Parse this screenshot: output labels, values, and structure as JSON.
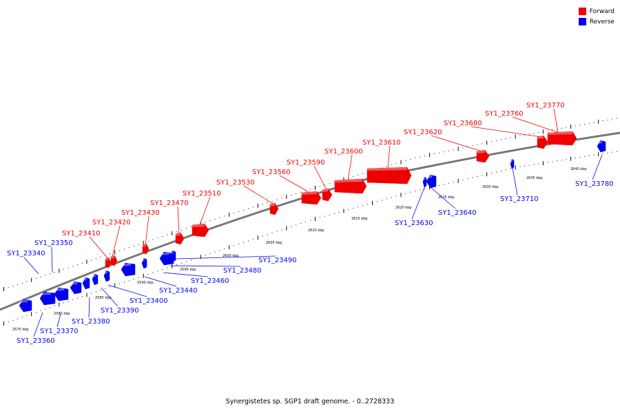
{
  "legend": {
    "forward_label": "Forward",
    "reverse_label": "Reverse",
    "forward_color": "#ee0000",
    "reverse_color": "#0000ee"
  },
  "caption": "Synergistetes sp. SGP1 draft genome. - 0..2728333",
  "axis_labels": [
    "2575 kbp",
    "2580 kbp",
    "2585 kbp",
    "2590 kbp",
    "2595 kbp",
    "2600 kbp",
    "2605 kbp",
    "2610 kbp",
    "2615 kbp",
    "2620 kbp",
    "2625 kbp",
    "2630 kbp",
    "2635 kbp",
    "2640 kbp"
  ],
  "genes_forward": [
    "SY1_23410",
    "SY1_23420",
    "SY1_23430",
    "SY1_23470",
    "SY1_23510",
    "SY1_23530",
    "SY1_23560",
    "SY1_23590",
    "SY1_23600",
    "SY1_23610",
    "SY1_23620",
    "SY1_23680",
    "SY1_23760",
    "SY1_23770"
  ],
  "genes_reverse": [
    "SY1_23340",
    "SY1_23350",
    "SY1_23360",
    "SY1_23370",
    "SY1_23380",
    "SY1_23390",
    "SY1_23400",
    "SY1_23440",
    "SY1_23460",
    "SY1_23480",
    "SY1_23490",
    "SY1_23630",
    "SY1_23640",
    "SY1_23710",
    "SY1_23780"
  ]
}
